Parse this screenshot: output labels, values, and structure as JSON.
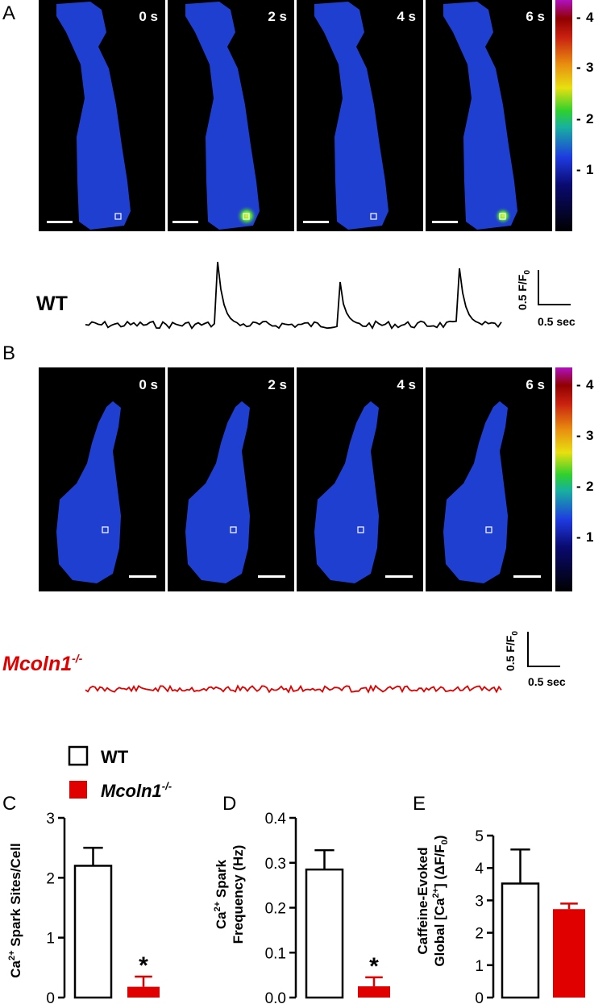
{
  "panels": {
    "A": "A",
    "B": "B",
    "C": "C",
    "D": "D",
    "E": "E"
  },
  "time_labels": [
    "0 s",
    "2 s",
    "4 s",
    "6 s"
  ],
  "colorbar": {
    "ticks": [
      "4",
      "3",
      "2",
      "1"
    ]
  },
  "colors": {
    "cell": "#1f3fd0",
    "background": "#000000",
    "wt_trace": "#000000",
    "ko_trace": "#e00000",
    "ko_bar": "#e00000"
  },
  "traces": {
    "wt_label": "WT",
    "ko_label": "Mcoln1",
    "ko_sup": "-/-",
    "scale_y": "0.5 F/F",
    "scale_y_sub": "0",
    "scale_x": "0.5 sec"
  },
  "legend": {
    "wt": "WT",
    "ko": "Mcoln1",
    "ko_sup": "-/-"
  },
  "chart_data": [
    {
      "type": "bar",
      "panel": "C",
      "categories": [
        "WT",
        "Mcoln1-/-"
      ],
      "values": [
        2.2,
        0.18
      ],
      "errors": [
        0.3,
        0.17
      ],
      "ylabel": "Ca2+ Spark Sites/Cell",
      "ylim": [
        0,
        3
      ],
      "yticks": [
        "0",
        "1",
        "2",
        "3"
      ],
      "annotation": "*"
    },
    {
      "type": "bar",
      "panel": "D",
      "categories": [
        "WT",
        "Mcoln1-/-"
      ],
      "values": [
        0.285,
        0.025
      ],
      "errors": [
        0.043,
        0.02
      ],
      "ylabel": "Ca2+ Spark Frequency (Hz)",
      "ylim": [
        0,
        0.4
      ],
      "yticks": [
        "0.0",
        "0.1",
        "0.2",
        "0.3",
        "0.4"
      ],
      "annotation": "*"
    },
    {
      "type": "bar",
      "panel": "E",
      "categories": [
        "WT",
        "Mcoln1-/-"
      ],
      "values": [
        3.52,
        2.73
      ],
      "errors": [
        1.05,
        0.17
      ],
      "ylabel": "Caffeine-Evoked Global [Ca2+] (ΔF/F0)",
      "ylim": [
        0,
        5
      ],
      "yticks": [
        "0",
        "1",
        "2",
        "3",
        "4",
        "5"
      ],
      "annotation": ""
    }
  ]
}
